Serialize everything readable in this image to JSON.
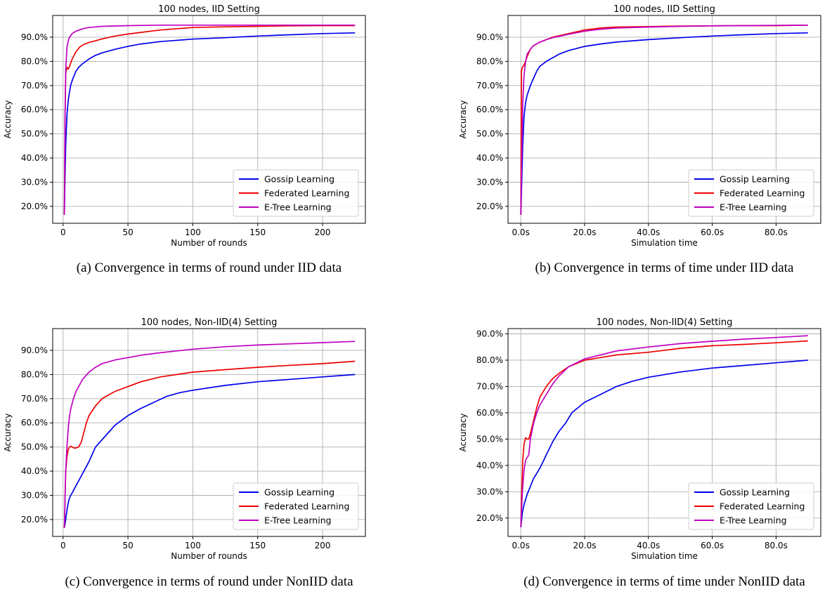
{
  "chart_data": [
    {
      "type": "line",
      "title": "100 nodes, IID Setting",
      "xlabel": "Number of rounds",
      "ylabel": "Accuracy",
      "caption": "(a) Convergence in terms of round under IID data",
      "xlim": [
        -8,
        233
      ],
      "ylim": [
        0.13,
        0.99
      ],
      "xticks": [
        0,
        50,
        100,
        150,
        200
      ],
      "xtick_labels": [
        "0",
        "50",
        "100",
        "150",
        "200"
      ],
      "yticks": [
        0.2,
        0.3,
        0.4,
        0.5,
        0.6,
        0.7,
        0.8,
        0.9
      ],
      "ytick_labels": [
        "20.0%",
        "30.0%",
        "40.0%",
        "50.0%",
        "60.0%",
        "70.0%",
        "80.0%",
        "90.0%"
      ],
      "grid": true,
      "legend_position": "lower-right",
      "series": [
        {
          "name": "Gossip Learning",
          "color": "#0000ee",
          "x": [
            1,
            1.5,
            2,
            3,
            4,
            5,
            6,
            8,
            10,
            12,
            15,
            20,
            25,
            30,
            40,
            50,
            60,
            75,
            100,
            125,
            150,
            175,
            200,
            225
          ],
          "y": [
            0.165,
            0.32,
            0.45,
            0.58,
            0.64,
            0.675,
            0.705,
            0.735,
            0.76,
            0.775,
            0.79,
            0.81,
            0.825,
            0.835,
            0.85,
            0.862,
            0.872,
            0.882,
            0.892,
            0.898,
            0.905,
            0.91,
            0.915,
            0.918
          ]
        },
        {
          "name": "Federated Learning",
          "color": "#ee0000",
          "x": [
            1,
            1.5,
            2,
            3,
            4,
            5,
            7,
            10,
            13,
            16,
            20,
            25,
            30,
            40,
            50,
            60,
            75,
            100,
            125,
            150,
            175,
            200,
            225
          ],
          "y": [
            0.165,
            0.55,
            0.75,
            0.775,
            0.768,
            0.78,
            0.81,
            0.84,
            0.86,
            0.87,
            0.878,
            0.885,
            0.893,
            0.905,
            0.913,
            0.92,
            0.93,
            0.94,
            0.943,
            0.945,
            0.947,
            0.948,
            0.948
          ]
        },
        {
          "name": "E-Tree Learning",
          "color": "#c000c0",
          "x": [
            1,
            1.5,
            2,
            3,
            4,
            5,
            7,
            10,
            15,
            20,
            30,
            50,
            75,
            100,
            150,
            200,
            225
          ],
          "y": [
            0.165,
            0.55,
            0.76,
            0.86,
            0.885,
            0.9,
            0.915,
            0.925,
            0.935,
            0.94,
            0.945,
            0.948,
            0.95,
            0.95,
            0.95,
            0.95,
            0.95
          ]
        }
      ]
    },
    {
      "type": "line",
      "title": "100 nodes, IID Setting",
      "xlabel": "Simulation time",
      "ylabel": "Accuracy",
      "caption": "(b) Convergence in terms of time under IID data",
      "xlim": [
        -4,
        94
      ],
      "ylim": [
        0.13,
        0.99
      ],
      "xticks": [
        0,
        20,
        40,
        60,
        80
      ],
      "xtick_labels": [
        "0.0s",
        "20.0s",
        "40.0s",
        "60.0s",
        "80.0s"
      ],
      "yticks": [
        0.2,
        0.3,
        0.4,
        0.5,
        0.6,
        0.7,
        0.8,
        0.9
      ],
      "ytick_labels": [
        "20.0%",
        "30.0%",
        "40.0%",
        "50.0%",
        "60.0%",
        "70.0%",
        "80.0%",
        "90.0%"
      ],
      "grid": true,
      "legend_position": "lower-right",
      "series": [
        {
          "name": "Gossip Learning",
          "color": "#0000ee",
          "x": [
            0,
            0.3,
            0.6,
            1,
            1.5,
            2,
            3,
            4,
            5,
            6,
            8,
            10,
            12,
            15,
            20,
            25,
            30,
            40,
            50,
            60,
            70,
            80,
            90
          ],
          "y": [
            0.165,
            0.3,
            0.45,
            0.57,
            0.63,
            0.66,
            0.7,
            0.73,
            0.76,
            0.78,
            0.8,
            0.815,
            0.83,
            0.845,
            0.862,
            0.872,
            0.88,
            0.89,
            0.898,
            0.905,
            0.91,
            0.915,
            0.918
          ]
        },
        {
          "name": "Federated Learning",
          "color": "#ee0000",
          "x": [
            0,
            0.2,
            0.5,
            1,
            1.5,
            2,
            3,
            4,
            6,
            8,
            10,
            15,
            20,
            25,
            30,
            40,
            50,
            60,
            70,
            80,
            90
          ],
          "y": [
            0.165,
            0.76,
            0.775,
            0.785,
            0.8,
            0.82,
            0.85,
            0.865,
            0.88,
            0.89,
            0.9,
            0.915,
            0.93,
            0.938,
            0.942,
            0.944,
            0.946,
            0.947,
            0.948,
            0.948,
            0.95
          ]
        },
        {
          "name": "E-Tree Learning",
          "color": "#c000c0",
          "x": [
            0,
            0.3,
            0.6,
            1,
            1.5,
            2,
            3,
            4,
            6,
            8,
            10,
            15,
            20,
            25,
            30,
            40,
            50,
            60,
            70,
            80,
            90
          ],
          "y": [
            0.165,
            0.4,
            0.62,
            0.74,
            0.8,
            0.83,
            0.85,
            0.865,
            0.88,
            0.89,
            0.898,
            0.912,
            0.925,
            0.933,
            0.938,
            0.942,
            0.945,
            0.947,
            0.948,
            0.949,
            0.95
          ]
        }
      ]
    },
    {
      "type": "line",
      "title": "100 nodes, Non-IID(4) Setting",
      "xlabel": "Number of rounds",
      "ylabel": "Accuracy",
      "caption": "(c) Convergence in terms of round under NonIID data",
      "xlim": [
        -8,
        233
      ],
      "ylim": [
        0.13,
        0.99
      ],
      "xticks": [
        0,
        50,
        100,
        150,
        200
      ],
      "xtick_labels": [
        "0",
        "50",
        "100",
        "150",
        "200"
      ],
      "yticks": [
        0.2,
        0.3,
        0.4,
        0.5,
        0.6,
        0.7,
        0.8,
        0.9
      ],
      "ytick_labels": [
        "20.0%",
        "30.0%",
        "40.0%",
        "50.0%",
        "60.0%",
        "70.0%",
        "80.0%",
        "90.0%"
      ],
      "grid": true,
      "legend_position": "lower-right",
      "series": [
        {
          "name": "Gossip Learning",
          "color": "#0000ee",
          "x": [
            1,
            2,
            3,
            4,
            5,
            7,
            10,
            13,
            15,
            20,
            25,
            30,
            35,
            40,
            50,
            60,
            70,
            80,
            90,
            100,
            125,
            150,
            175,
            200,
            225
          ],
          "y": [
            0.165,
            0.2,
            0.24,
            0.27,
            0.29,
            0.31,
            0.34,
            0.37,
            0.39,
            0.44,
            0.5,
            0.53,
            0.56,
            0.59,
            0.63,
            0.66,
            0.685,
            0.71,
            0.725,
            0.735,
            0.755,
            0.77,
            0.78,
            0.79,
            0.8
          ]
        },
        {
          "name": "Federated Learning",
          "color": "#ee0000",
          "x": [
            1,
            2,
            3,
            4,
            5,
            6,
            7,
            9,
            12,
            14,
            16,
            18,
            20,
            25,
            30,
            40,
            50,
            60,
            75,
            100,
            125,
            150,
            175,
            200,
            225
          ],
          "y": [
            0.165,
            0.4,
            0.46,
            0.49,
            0.5,
            0.503,
            0.5,
            0.495,
            0.5,
            0.52,
            0.56,
            0.6,
            0.63,
            0.67,
            0.7,
            0.73,
            0.75,
            0.77,
            0.79,
            0.81,
            0.82,
            0.83,
            0.838,
            0.845,
            0.855
          ]
        },
        {
          "name": "E-Tree Learning",
          "color": "#c000c0",
          "x": [
            1,
            2,
            3,
            4,
            5,
            6,
            8,
            10,
            12,
            15,
            20,
            25,
            30,
            40,
            50,
            60,
            75,
            100,
            125,
            150,
            175,
            200,
            225
          ],
          "y": [
            0.165,
            0.4,
            0.5,
            0.58,
            0.63,
            0.66,
            0.7,
            0.73,
            0.75,
            0.78,
            0.81,
            0.83,
            0.845,
            0.86,
            0.87,
            0.88,
            0.89,
            0.905,
            0.915,
            0.922,
            0.927,
            0.932,
            0.937
          ]
        }
      ]
    },
    {
      "type": "line",
      "title": "100 nodes, Non-IID(4) Setting",
      "xlabel": "Simulation time",
      "ylabel": "Accuracy",
      "caption": "(d) Convergence in terms of time under NonIID data",
      "xlim": [
        -4,
        94
      ],
      "ylim": [
        0.13,
        0.92
      ],
      "xticks": [
        0,
        20,
        40,
        60,
        80
      ],
      "xtick_labels": [
        "0.0s",
        "20.0s",
        "40.0s",
        "60.0s",
        "80.0s"
      ],
      "yticks": [
        0.2,
        0.3,
        0.4,
        0.5,
        0.6,
        0.7,
        0.8,
        0.9
      ],
      "ytick_labels": [
        "20.0%",
        "30.0%",
        "40.0%",
        "50.0%",
        "60.0%",
        "70.0%",
        "80.0%",
        "90.0%"
      ],
      "grid": true,
      "legend_position": "lower-right",
      "series": [
        {
          "name": "Gossip Learning",
          "color": "#0000ee",
          "x": [
            0,
            0.5,
            1,
            2,
            3,
            4,
            5,
            6,
            8,
            10,
            12,
            14,
            16,
            18,
            20,
            25,
            30,
            35,
            40,
            50,
            60,
            70,
            80,
            90
          ],
          "y": [
            0.165,
            0.22,
            0.25,
            0.29,
            0.32,
            0.35,
            0.37,
            0.39,
            0.44,
            0.49,
            0.53,
            0.56,
            0.6,
            0.62,
            0.64,
            0.67,
            0.7,
            0.72,
            0.735,
            0.755,
            0.77,
            0.78,
            0.79,
            0.8
          ]
        },
        {
          "name": "Federated Learning",
          "color": "#ee0000",
          "x": [
            0,
            0.3,
            0.6,
            1,
            1.5,
            2,
            2.5,
            3,
            4,
            5,
            6,
            8,
            10,
            12,
            15,
            20,
            25,
            30,
            40,
            50,
            60,
            70,
            80,
            90
          ],
          "y": [
            0.165,
            0.3,
            0.42,
            0.48,
            0.505,
            0.5,
            0.5,
            0.52,
            0.57,
            0.62,
            0.66,
            0.7,
            0.73,
            0.75,
            0.775,
            0.8,
            0.81,
            0.82,
            0.83,
            0.845,
            0.855,
            0.86,
            0.866,
            0.873
          ]
        },
        {
          "name": "E-Tree Learning",
          "color": "#c000c0",
          "x": [
            0,
            0.5,
            1,
            1.5,
            2,
            2.5,
            3,
            4,
            5,
            6,
            8,
            10,
            12,
            15,
            20,
            25,
            30,
            40,
            50,
            60,
            70,
            80,
            90
          ],
          "y": [
            0.165,
            0.3,
            0.38,
            0.42,
            0.43,
            0.44,
            0.5,
            0.56,
            0.6,
            0.63,
            0.67,
            0.71,
            0.74,
            0.775,
            0.805,
            0.82,
            0.835,
            0.85,
            0.863,
            0.872,
            0.88,
            0.886,
            0.893
          ]
        }
      ]
    }
  ]
}
